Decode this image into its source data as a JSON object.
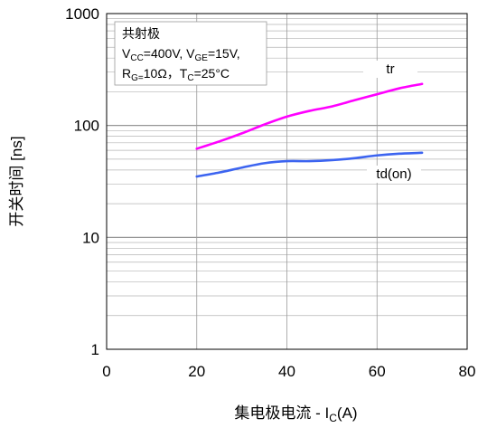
{
  "chart_data": {
    "type": "line",
    "xlabel_prefix": "集电极电流 - I",
    "xlabel_sub": "C",
    "xlabel_suffix": "(A)",
    "ylabel": "开关时间 [ns]",
    "xlim": [
      0,
      80
    ],
    "ylim": [
      1,
      1000
    ],
    "yscale": "log",
    "x_ticks": [
      "0",
      "20",
      "40",
      "60",
      "80"
    ],
    "y_ticks": [
      "1",
      "10",
      "100",
      "1000"
    ],
    "grid": true,
    "annotation": {
      "line1": "共射极",
      "line2": [
        {
          "t": "V"
        },
        {
          "t": "CC",
          "sub": true
        },
        {
          "t": "=400V, V"
        },
        {
          "t": "GE",
          "sub": true
        },
        {
          "t": "=15V,"
        }
      ],
      "line3": [
        {
          "t": "R"
        },
        {
          "t": "G=",
          "sub": true
        },
        {
          "t": "10Ω，T"
        },
        {
          "t": "C",
          "sub": true
        },
        {
          "t": "=25°C"
        }
      ]
    },
    "series": [
      {
        "name": "tr",
        "color": "#ff00ff",
        "x": [
          20,
          25,
          30,
          35,
          40,
          45,
          50,
          55,
          60,
          65,
          70
        ],
        "y": [
          62,
          72,
          85,
          102,
          120,
          135,
          148,
          168,
          190,
          215,
          235
        ]
      },
      {
        "name": "td(on)",
        "color": "#3c64f0",
        "x": [
          20,
          25,
          30,
          35,
          40,
          45,
          50,
          55,
          60,
          65,
          70
        ],
        "y": [
          35,
          38,
          42,
          46,
          48,
          48,
          49,
          51,
          54,
          56,
          57
        ]
      }
    ]
  }
}
